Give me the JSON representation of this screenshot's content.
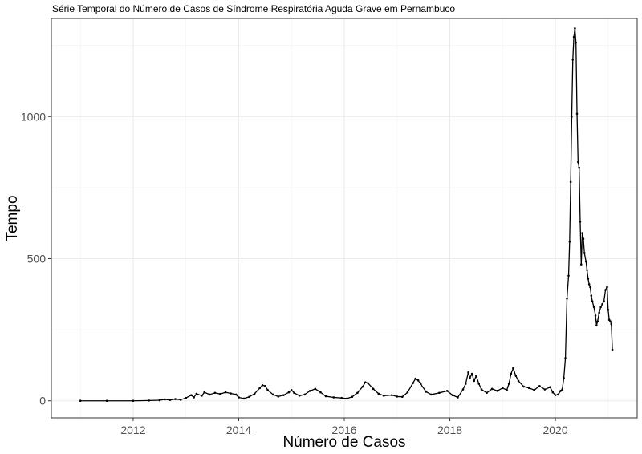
{
  "chart_data": {
    "type": "line",
    "title": "Série Temporal do Número de Casos de Síndrome Respiratória Aguda Grave em Pernambuco",
    "xlabel": "Número de Casos",
    "ylabel": "Tempo",
    "xlim": [
      2010.45,
      2021.55
    ],
    "ylim": [
      -60,
      1345
    ],
    "x_ticks": [
      2012,
      2014,
      2016,
      2018,
      2020
    ],
    "x_tick_labels": [
      "2012",
      "2014",
      "2016",
      "2018",
      "2020"
    ],
    "y_ticks": [
      0,
      500,
      1000
    ],
    "y_tick_labels": [
      "0",
      "500",
      "1000"
    ],
    "grid": true,
    "line_color": "#000000",
    "series": [
      {
        "points": [
          [
            2011.0,
            0
          ],
          [
            2011.5,
            0
          ],
          [
            2012.0,
            0
          ],
          [
            2012.3,
            1
          ],
          [
            2012.5,
            2
          ],
          [
            2012.6,
            5
          ],
          [
            2012.7,
            3
          ],
          [
            2012.8,
            6
          ],
          [
            2012.9,
            4
          ],
          [
            2013.0,
            10
          ],
          [
            2013.1,
            20
          ],
          [
            2013.15,
            12
          ],
          [
            2013.2,
            25
          ],
          [
            2013.3,
            18
          ],
          [
            2013.35,
            30
          ],
          [
            2013.45,
            22
          ],
          [
            2013.55,
            28
          ],
          [
            2013.65,
            24
          ],
          [
            2013.75,
            30
          ],
          [
            2013.85,
            26
          ],
          [
            2013.95,
            22
          ],
          [
            2014.0,
            12
          ],
          [
            2014.1,
            8
          ],
          [
            2014.2,
            14
          ],
          [
            2014.3,
            25
          ],
          [
            2014.4,
            45
          ],
          [
            2014.45,
            55
          ],
          [
            2014.5,
            52
          ],
          [
            2014.55,
            38
          ],
          [
            2014.65,
            22
          ],
          [
            2014.75,
            15
          ],
          [
            2014.85,
            20
          ],
          [
            2014.95,
            30
          ],
          [
            2015.0,
            38
          ],
          [
            2015.05,
            28
          ],
          [
            2015.15,
            18
          ],
          [
            2015.25,
            22
          ],
          [
            2015.35,
            35
          ],
          [
            2015.45,
            42
          ],
          [
            2015.55,
            30
          ],
          [
            2015.65,
            16
          ],
          [
            2015.8,
            12
          ],
          [
            2015.95,
            10
          ],
          [
            2016.05,
            8
          ],
          [
            2016.15,
            14
          ],
          [
            2016.25,
            28
          ],
          [
            2016.35,
            50
          ],
          [
            2016.4,
            65
          ],
          [
            2016.45,
            62
          ],
          [
            2016.55,
            42
          ],
          [
            2016.65,
            25
          ],
          [
            2016.75,
            18
          ],
          [
            2016.9,
            20
          ],
          [
            2017.0,
            15
          ],
          [
            2017.1,
            14
          ],
          [
            2017.2,
            30
          ],
          [
            2017.3,
            62
          ],
          [
            2017.35,
            78
          ],
          [
            2017.4,
            72
          ],
          [
            2017.45,
            58
          ],
          [
            2017.55,
            32
          ],
          [
            2017.65,
            22
          ],
          [
            2017.8,
            28
          ],
          [
            2017.95,
            35
          ],
          [
            2018.05,
            20
          ],
          [
            2018.15,
            12
          ],
          [
            2018.25,
            40
          ],
          [
            2018.3,
            60
          ],
          [
            2018.35,
            100
          ],
          [
            2018.38,
            80
          ],
          [
            2018.42,
            95
          ],
          [
            2018.46,
            70
          ],
          [
            2018.5,
            88
          ],
          [
            2018.55,
            60
          ],
          [
            2018.6,
            40
          ],
          [
            2018.7,
            28
          ],
          [
            2018.8,
            42
          ],
          [
            2018.9,
            35
          ],
          [
            2019.0,
            45
          ],
          [
            2019.08,
            38
          ],
          [
            2019.12,
            60
          ],
          [
            2019.16,
            95
          ],
          [
            2019.2,
            115
          ],
          [
            2019.25,
            88
          ],
          [
            2019.3,
            70
          ],
          [
            2019.4,
            50
          ],
          [
            2019.5,
            45
          ],
          [
            2019.6,
            38
          ],
          [
            2019.7,
            52
          ],
          [
            2019.8,
            40
          ],
          [
            2019.9,
            48
          ],
          [
            2019.95,
            30
          ],
          [
            2020.0,
            20
          ],
          [
            2020.05,
            22
          ],
          [
            2020.1,
            35
          ],
          [
            2020.13,
            40
          ],
          [
            2020.16,
            80
          ],
          [
            2020.19,
            150
          ],
          [
            2020.22,
            360
          ],
          [
            2020.25,
            440
          ],
          [
            2020.27,
            560
          ],
          [
            2020.29,
            770
          ],
          [
            2020.31,
            1000
          ],
          [
            2020.33,
            1200
          ],
          [
            2020.35,
            1280
          ],
          [
            2020.37,
            1310
          ],
          [
            2020.39,
            1260
          ],
          [
            2020.41,
            1010
          ],
          [
            2020.43,
            840
          ],
          [
            2020.45,
            820
          ],
          [
            2020.47,
            630
          ],
          [
            2020.49,
            480
          ],
          [
            2020.51,
            590
          ],
          [
            2020.53,
            570
          ],
          [
            2020.55,
            520
          ],
          [
            2020.58,
            490
          ],
          [
            2020.6,
            460
          ],
          [
            2020.62,
            430
          ],
          [
            2020.64,
            410
          ],
          [
            2020.66,
            400
          ],
          [
            2020.68,
            370
          ],
          [
            2020.7,
            350
          ],
          [
            2020.73,
            330
          ],
          [
            2020.76,
            300
          ],
          [
            2020.78,
            265
          ],
          [
            2020.8,
            280
          ],
          [
            2020.83,
            310
          ],
          [
            2020.86,
            330
          ],
          [
            2020.89,
            340
          ],
          [
            2020.92,
            350
          ],
          [
            2020.95,
            390
          ],
          [
            2020.98,
            400
          ],
          [
            2021.0,
            320
          ],
          [
            2021.02,
            285
          ],
          [
            2021.04,
            280
          ],
          [
            2021.06,
            270
          ],
          [
            2021.08,
            180
          ]
        ]
      }
    ]
  }
}
